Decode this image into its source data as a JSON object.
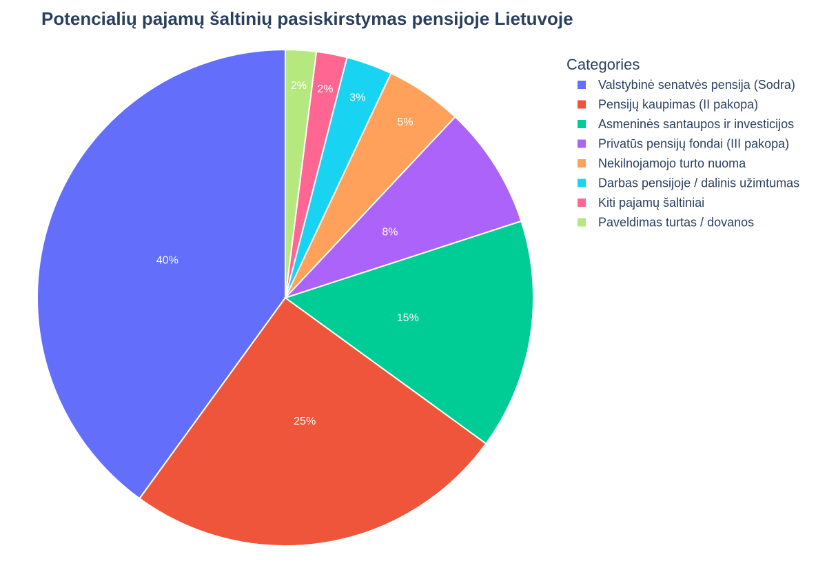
{
  "chart_data": {
    "type": "pie",
    "title": "Potencialių pajamų šaltinių pasiskirstymas pensijoje Lietuvoje",
    "legend_title": "Categories",
    "legend_position": "right",
    "categories": [
      "Valstybinė senatvės pensija (Sodra)",
      "Pensijų kaupimas (II pakopa)",
      "Asmeninės santaupos ir investicijos",
      "Privatūs pensijų fondai (III pakopa)",
      "Nekilnojamojo turto nuoma",
      "Darbas pensijoje / dalinis užimtumas",
      "Kiti pajamų šaltiniai",
      "Paveldimas turtas / dovanos"
    ],
    "values": [
      40,
      25,
      15,
      8,
      5,
      3,
      2,
      2
    ],
    "labels": [
      "40%",
      "25%",
      "15%",
      "8%",
      "5%",
      "3%",
      "2%",
      "2%"
    ],
    "colors": [
      "#636efa",
      "#ef553b",
      "#00cc96",
      "#ab63fa",
      "#ffa15a",
      "#19d3f3",
      "#ff6692",
      "#b6e880"
    ],
    "direction": "counterclockwise",
    "start": "top"
  }
}
